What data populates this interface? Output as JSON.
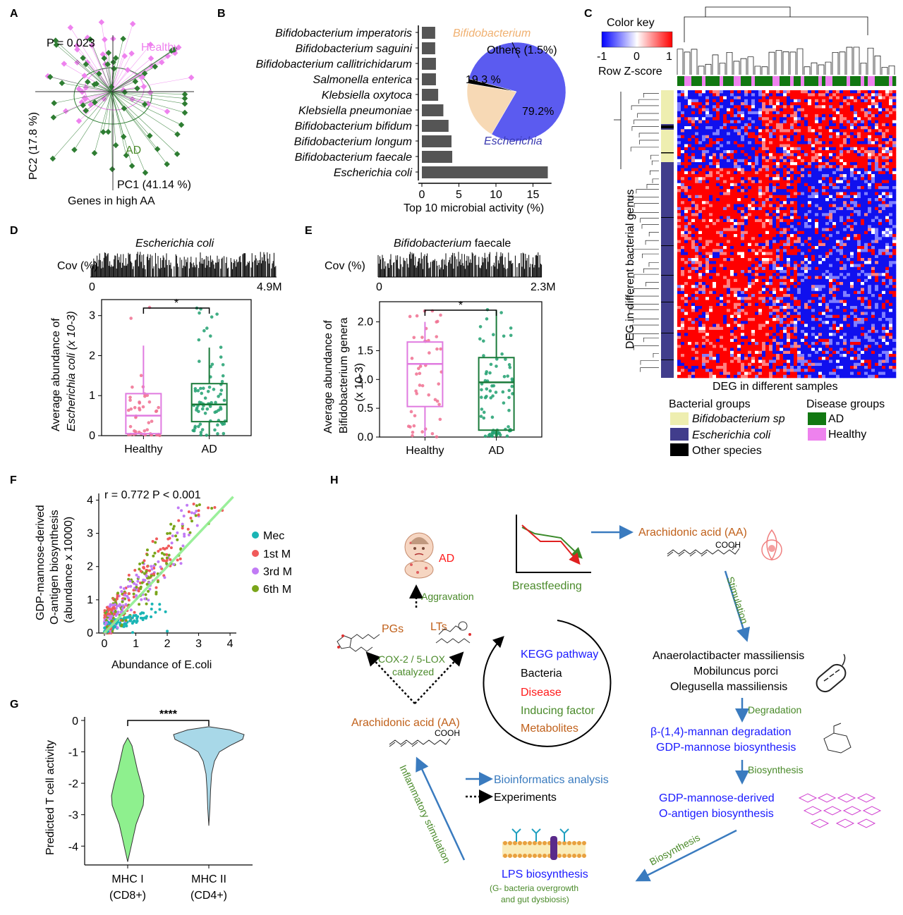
{
  "panel_labels": [
    "A",
    "B",
    "C",
    "D",
    "E",
    "F",
    "G",
    "H"
  ],
  "colors": {
    "healthy": "#ee82ee",
    "ad": "#2e7d32",
    "ad_box": "#1a7a3a",
    "healthy_box": "#e07be0",
    "bar": "#555555",
    "escherichia": "#5b5bf0",
    "bifido": "#f7d9b5",
    "bifido_group": "#eeeeb0",
    "ecoli_group": "#413d8c",
    "other_group": "#000000",
    "blue_text": "#1a1aff",
    "orange_text": "#c0601a",
    "green_text": "#4a8a2a",
    "red_text": "#ff1a1a",
    "arrow_blue": "#3a7bbf",
    "mec": "#1ab5b5",
    "m1": "#f05a5a",
    "m3": "#c17bf5",
    "m6": "#7aa51a"
  },
  "panelA": {
    "pvalue": "P = 0.023",
    "healthy_label": "Healthy",
    "ad_label": "AD",
    "xlabel": "PC1 (41.14 %)",
    "ylabel": "PC2 (17.8 %)",
    "caption": "Genes in high AA"
  },
  "chart_data": [
    {
      "type": "bar",
      "panel": "B",
      "orientation": "horizontal",
      "categories": [
        "Bifidobacterium imperatoris",
        "Bifidobacterium saguini",
        "Bifidobacterium callitrichidarum",
        "Salmonella enterica",
        "Klebsiella oxytoca",
        "Klebsiella pneumoniae",
        "Bifidobacterium bifidum",
        "Bifidobacterium longum",
        "Bifidobacterium faecale",
        "Escherichia coli"
      ],
      "values": [
        1.8,
        1.8,
        1.9,
        1.9,
        2.2,
        2.9,
        3.6,
        4.0,
        4.1,
        17.0
      ],
      "xlabel": "Top 10 microbial activity (%)",
      "xticks": [
        0,
        5,
        10,
        15
      ],
      "xlim": [
        0,
        17.5
      ]
    },
    {
      "type": "pie",
      "panel": "B-inset",
      "labels": [
        "Escherichia",
        "Bifidobacterium",
        "Others"
      ],
      "values": [
        79.2,
        19.3,
        1.5
      ],
      "value_labels": [
        "79.2%",
        "19.3 %",
        "Others (1.5%)"
      ]
    },
    {
      "type": "box",
      "panel": "D",
      "categories": [
        "Healthy",
        "AD"
      ],
      "series": [
        {
          "name": "Healthy",
          "q1": 0.05,
          "median": 0.5,
          "q3": 1.05,
          "whisker_low": 0.0,
          "whisker_high": 2.25
        },
        {
          "name": "AD",
          "q1": 0.35,
          "median": 0.78,
          "q3": 1.3,
          "whisker_low": 0.0,
          "whisker_high": 2.2
        }
      ],
      "ylabel_line1": "Average abundance of",
      "ylabel_line2": "Escherichia coli (x 10-3)",
      "yticks": [
        0,
        1,
        2,
        3
      ],
      "ylim": [
        0,
        3.4
      ],
      "significance": "*",
      "coverage_title": "Escherichia coli",
      "coverage_label": "Cov (%)",
      "coverage_start": "0",
      "coverage_end": "4.9M"
    },
    {
      "type": "box",
      "panel": "E",
      "categories": [
        "Healthy",
        "AD"
      ],
      "series": [
        {
          "name": "Healthy",
          "q1": 0.53,
          "median": 1.27,
          "q3": 1.65,
          "whisker_low": 0.0,
          "whisker_high": 2.0
        },
        {
          "name": "AD",
          "q1": 0.12,
          "median": 0.95,
          "q3": 1.38,
          "whisker_low": 0.0,
          "whisker_high": 2.2
        }
      ],
      "ylabel_line1": "Average abundance of",
      "ylabel_line2": "Bifidobacterium genera",
      "ylabel_line3": "(x 10-3)",
      "yticks": [
        0.0,
        0.5,
        1.0,
        1.5,
        2.0
      ],
      "ylim": [
        0,
        2.35
      ],
      "significance": "*",
      "coverage_title_italic": "Bifidobacterium",
      "coverage_title_rest": " faecale",
      "coverage_label": "Cov (%)",
      "coverage_start": "0",
      "coverage_end": "2.3M"
    },
    {
      "type": "scatter",
      "panel": "F",
      "stat": "r = 0.772 P < 0.001",
      "xlabel": "Abundance of E.coli",
      "ylabel_line1": "GDP-mannose-derived",
      "ylabel_line2": "O-antigen biosynthesis",
      "ylabel_line3": "(abundance x 10000)",
      "xlim": [
        0,
        4.2
      ],
      "ylim": [
        0,
        4.2
      ],
      "xticks": [
        0,
        1,
        2,
        3,
        4
      ],
      "yticks": [
        0,
        1,
        2,
        3,
        4
      ],
      "series": [
        "Mec",
        "1st M",
        "3rd M",
        "6th M"
      ],
      "fit": {
        "slope": 1.0,
        "intercept": 0
      }
    },
    {
      "type": "violin",
      "panel": "G",
      "categories": [
        "MHC I",
        "MHC II"
      ],
      "sublabels": [
        "(CD8+)",
        "(CD4+)"
      ],
      "ylabel": "Predicted T cell activity",
      "yticks": [
        0,
        -1,
        -2,
        -3,
        -4
      ],
      "ylim": [
        -4.6,
        0
      ],
      "significance": "****"
    }
  ],
  "panelC": {
    "color_key": "Color key",
    "key_ticks": [
      "-1",
      "0",
      "1"
    ],
    "key_label": "Row Z-score",
    "ylabel": "DEG in different bacterial genus",
    "xlabel": "DEG in different samples",
    "bacterial_groups_title": "Bacterial groups",
    "disease_groups_title": "Disease groups",
    "legend_bifido": "Bifidobacterium sp",
    "legend_ecoli": "Escherichia coli",
    "legend_other": "Other species",
    "legend_ad": "AD",
    "legend_healthy": "Healthy"
  },
  "panelH": {
    "ad": "AD",
    "aggravation": "Aggravation",
    "breastfeeding": "Breastfeeding",
    "aa_top": "Arachidonic acid (AA)",
    "stimulation": "Stimulation",
    "pgs": "PGs",
    "lts": "LTs",
    "cox": "COX-2 / 5-LOX",
    "catalyzed": "catalyzed",
    "aa_left": "Arachidonic acid (AA)",
    "legend_kegg": "KEGG pathway",
    "legend_bacteria": "Bacteria",
    "legend_disease": "Disease",
    "legend_inducing": "Inducing factor",
    "legend_metabolites": "Metabolites",
    "bacteria1": "Anaerolactibacter massiliensis",
    "bacteria2": "Mobiluncus porci",
    "bacteria3": "Olegusella massiliensis",
    "degradation": "Degradation",
    "mannan": "β-(1,4)-mannan degradation",
    "gdp_biosynth": "GDP-mannose biosynthesis",
    "biosynthesis1": "Biosynthesis",
    "oantigen1": "GDP-mannose-derived",
    "oantigen2": "O-antigen biosynthesis",
    "biosynthesis2": "Biosynthesis",
    "lps": "LPS biosynthesis",
    "lps_sub1": "(G- bacteria overgrowth",
    "lps_sub2": "and gut dysbiosis)",
    "inflammatory": "Inflammatory stimulation",
    "bioinfo": "Bioinformatics analysis",
    "experiments": "Experiments",
    "cooh": "COOH"
  }
}
